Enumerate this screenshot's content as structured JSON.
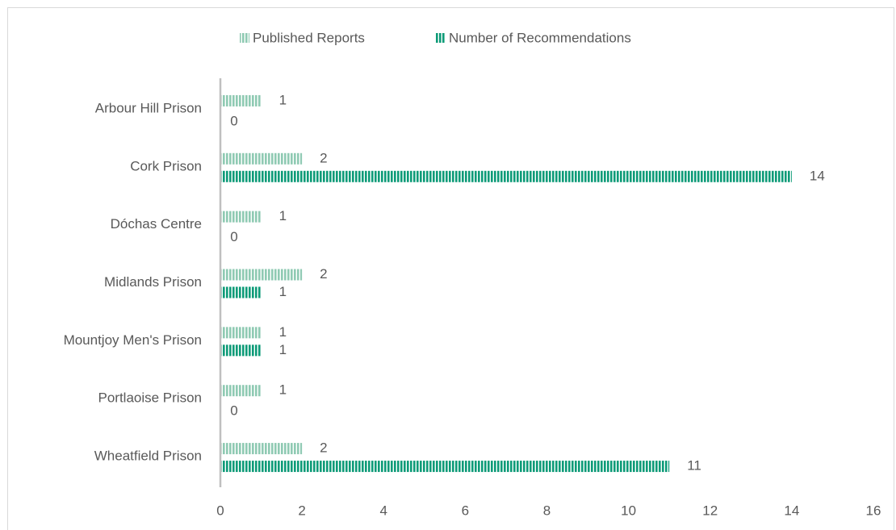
{
  "chart_data": {
    "type": "bar",
    "orientation": "horizontal",
    "categories": [
      "Arbour Hill Prison",
      "Cork Prison",
      "Dóchas Centre",
      "Midlands Prison",
      "Mountjoy Men's Prison",
      "Portlaoise Prison",
      "Wheatfield Prison"
    ],
    "series": [
      {
        "name": "Published Reports",
        "color": "#8fcab3",
        "values": [
          1,
          2,
          1,
          2,
          1,
          1,
          2
        ]
      },
      {
        "name": "Number of Recommendations",
        "color": "#0e9b78",
        "values": [
          0,
          14,
          0,
          1,
          1,
          0,
          11
        ]
      }
    ],
    "xlim": [
      0,
      16
    ],
    "xticks": [
      0,
      2,
      4,
      6,
      8,
      10,
      12,
      14,
      16
    ],
    "grid": false,
    "legend": "top"
  }
}
